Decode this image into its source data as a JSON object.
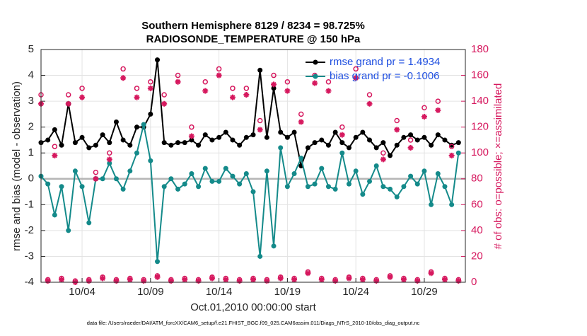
{
  "chart_data": {
    "type": "line",
    "title": "Southern Hemisphere 8129 / 8234 = 98.725%",
    "subtitle": "RADIOSONDE_TEMPERATURE @ 150 hPa",
    "x_label": "Oct.01,2010 00:00:00 start",
    "y_label": "rmse and bias (model - observation)",
    "y2_label": "# of obs: o=possible; ×=assimilated",
    "footnote": "data file: /Users/raeder/DAI/ATM_forcXX/CAM6_setup/f.e21.FHIST_BGC.f09_025.CAM6assim.011/Diags_NTrS_2010-10/obs_diag_output.nc",
    "x": [
      0,
      0.5,
      1,
      1.5,
      2,
      2.5,
      3,
      3.5,
      4,
      4.5,
      5,
      5.5,
      6,
      6.5,
      7,
      7.5,
      8,
      8.5,
      9,
      9.5,
      10,
      10.5,
      11,
      11.5,
      12,
      12.5,
      13,
      13.5,
      14,
      14.5,
      15,
      15.5,
      16,
      16.5,
      17,
      17.5,
      18,
      18.5,
      19,
      19.5,
      20,
      20.5,
      21,
      21.5,
      22,
      22.5,
      23,
      23.5,
      24,
      24.5,
      25,
      25.5,
      26,
      26.5,
      27,
      27.5,
      28,
      28.5,
      29,
      29.5,
      30,
      30.5
    ],
    "xlim": [
      0,
      31
    ],
    "xticks": [
      {
        "value": 3,
        "label": "10/04"
      },
      {
        "value": 8,
        "label": "10/09"
      },
      {
        "value": 13,
        "label": "10/14"
      },
      {
        "value": 18,
        "label": "10/19"
      },
      {
        "value": 23,
        "label": "10/24"
      },
      {
        "value": 28,
        "label": "10/29"
      }
    ],
    "ylim": [
      -4,
      5
    ],
    "yticks": [
      -4,
      -3,
      -2,
      -1,
      0,
      1,
      2,
      3,
      4,
      5
    ],
    "y2lim": [
      0,
      180
    ],
    "y2ticks": [
      0,
      20,
      40,
      60,
      80,
      100,
      120,
      140,
      160,
      180
    ],
    "grid": true,
    "legend": "upper right",
    "series": [
      {
        "name": "rmse grand pr = 1.4934",
        "color": "#000000",
        "marker": "dot",
        "values": [
          1.4,
          1.5,
          1.9,
          1.3,
          2.9,
          1.4,
          1.6,
          1.2,
          1.3,
          1.7,
          1.4,
          2.2,
          1.5,
          1.3,
          2.0,
          2.0,
          2.5,
          4.6,
          1.4,
          1.3,
          1.4,
          1.4,
          1.5,
          1.3,
          1.7,
          1.5,
          1.6,
          1.8,
          1.5,
          1.3,
          1.6,
          1.7,
          4.2,
          1.6,
          3.5,
          1.8,
          1.6,
          1.8,
          0.5,
          1.2,
          1.4,
          1.5,
          1.3,
          1.8,
          1.4,
          1.2,
          1.6,
          1.8,
          1.5,
          1.2,
          1.4,
          0.9,
          1.3,
          1.6,
          1.7,
          1.5,
          1.6,
          1.3,
          1.7,
          1.5,
          1.3,
          1.4
        ]
      },
      {
        "name": "bias grand pr = -0.1006",
        "color": "#148a8a",
        "marker": "dot",
        "values": [
          0.1,
          -0.2,
          -1.4,
          -0.3,
          -2.0,
          0.3,
          -0.3,
          -1.7,
          0.0,
          0.0,
          0.6,
          0.0,
          -0.4,
          0.3,
          1.0,
          2.1,
          0.7,
          -3.2,
          -0.3,
          0.0,
          -0.4,
          -0.2,
          0.2,
          -0.3,
          0.4,
          -0.1,
          -0.1,
          0.4,
          0.1,
          -0.2,
          0.2,
          -0.5,
          -3.0,
          0.3,
          -2.6,
          1.2,
          -0.3,
          0.2,
          0.8,
          -0.3,
          -0.2,
          0.4,
          -0.3,
          -0.4,
          1.0,
          -0.2,
          0.3,
          -0.6,
          -0.1,
          0.5,
          -0.3,
          -0.4,
          -0.7,
          -0.3,
          0.1,
          -0.2,
          0.3,
          -1.0,
          0.2,
          -0.3,
          -1.0,
          1.0
        ]
      },
      {
        "color": "#d6185e",
        "marker": "circle",
        "axis": "y2",
        "values": [
          145,
          2,
          105,
          3,
          145,
          1,
          150,
          2,
          85,
          4,
          100,
          2,
          165,
          3,
          150,
          2,
          155,
          5,
          145,
          2,
          160,
          3,
          120,
          2,
          155,
          4,
          165,
          3,
          150,
          2,
          150,
          3,
          125,
          2,
          160,
          4,
          155,
          3,
          130,
          8,
          160,
          3,
          155,
          2,
          120,
          4,
          165,
          3,
          145,
          2,
          100,
          5,
          125,
          3,
          110,
          2,
          135,
          8,
          140,
          3,
          105,
          2
        ]
      },
      {
        "color": "#d6185e",
        "marker": "asterisk",
        "axis": "y2",
        "values": [
          138,
          1,
          98,
          2,
          138,
          0,
          143,
          1,
          80,
          3,
          95,
          1,
          158,
          2,
          143,
          1,
          150,
          4,
          138,
          1,
          155,
          2,
          113,
          1,
          148,
          3,
          160,
          2,
          143,
          1,
          145,
          2,
          118,
          1,
          153,
          3,
          148,
          2,
          124,
          7,
          154,
          2,
          148,
          1,
          114,
          3,
          158,
          2,
          138,
          1,
          95,
          4,
          118,
          2,
          104,
          1,
          128,
          7,
          133,
          2,
          98,
          1
        ]
      }
    ]
  }
}
